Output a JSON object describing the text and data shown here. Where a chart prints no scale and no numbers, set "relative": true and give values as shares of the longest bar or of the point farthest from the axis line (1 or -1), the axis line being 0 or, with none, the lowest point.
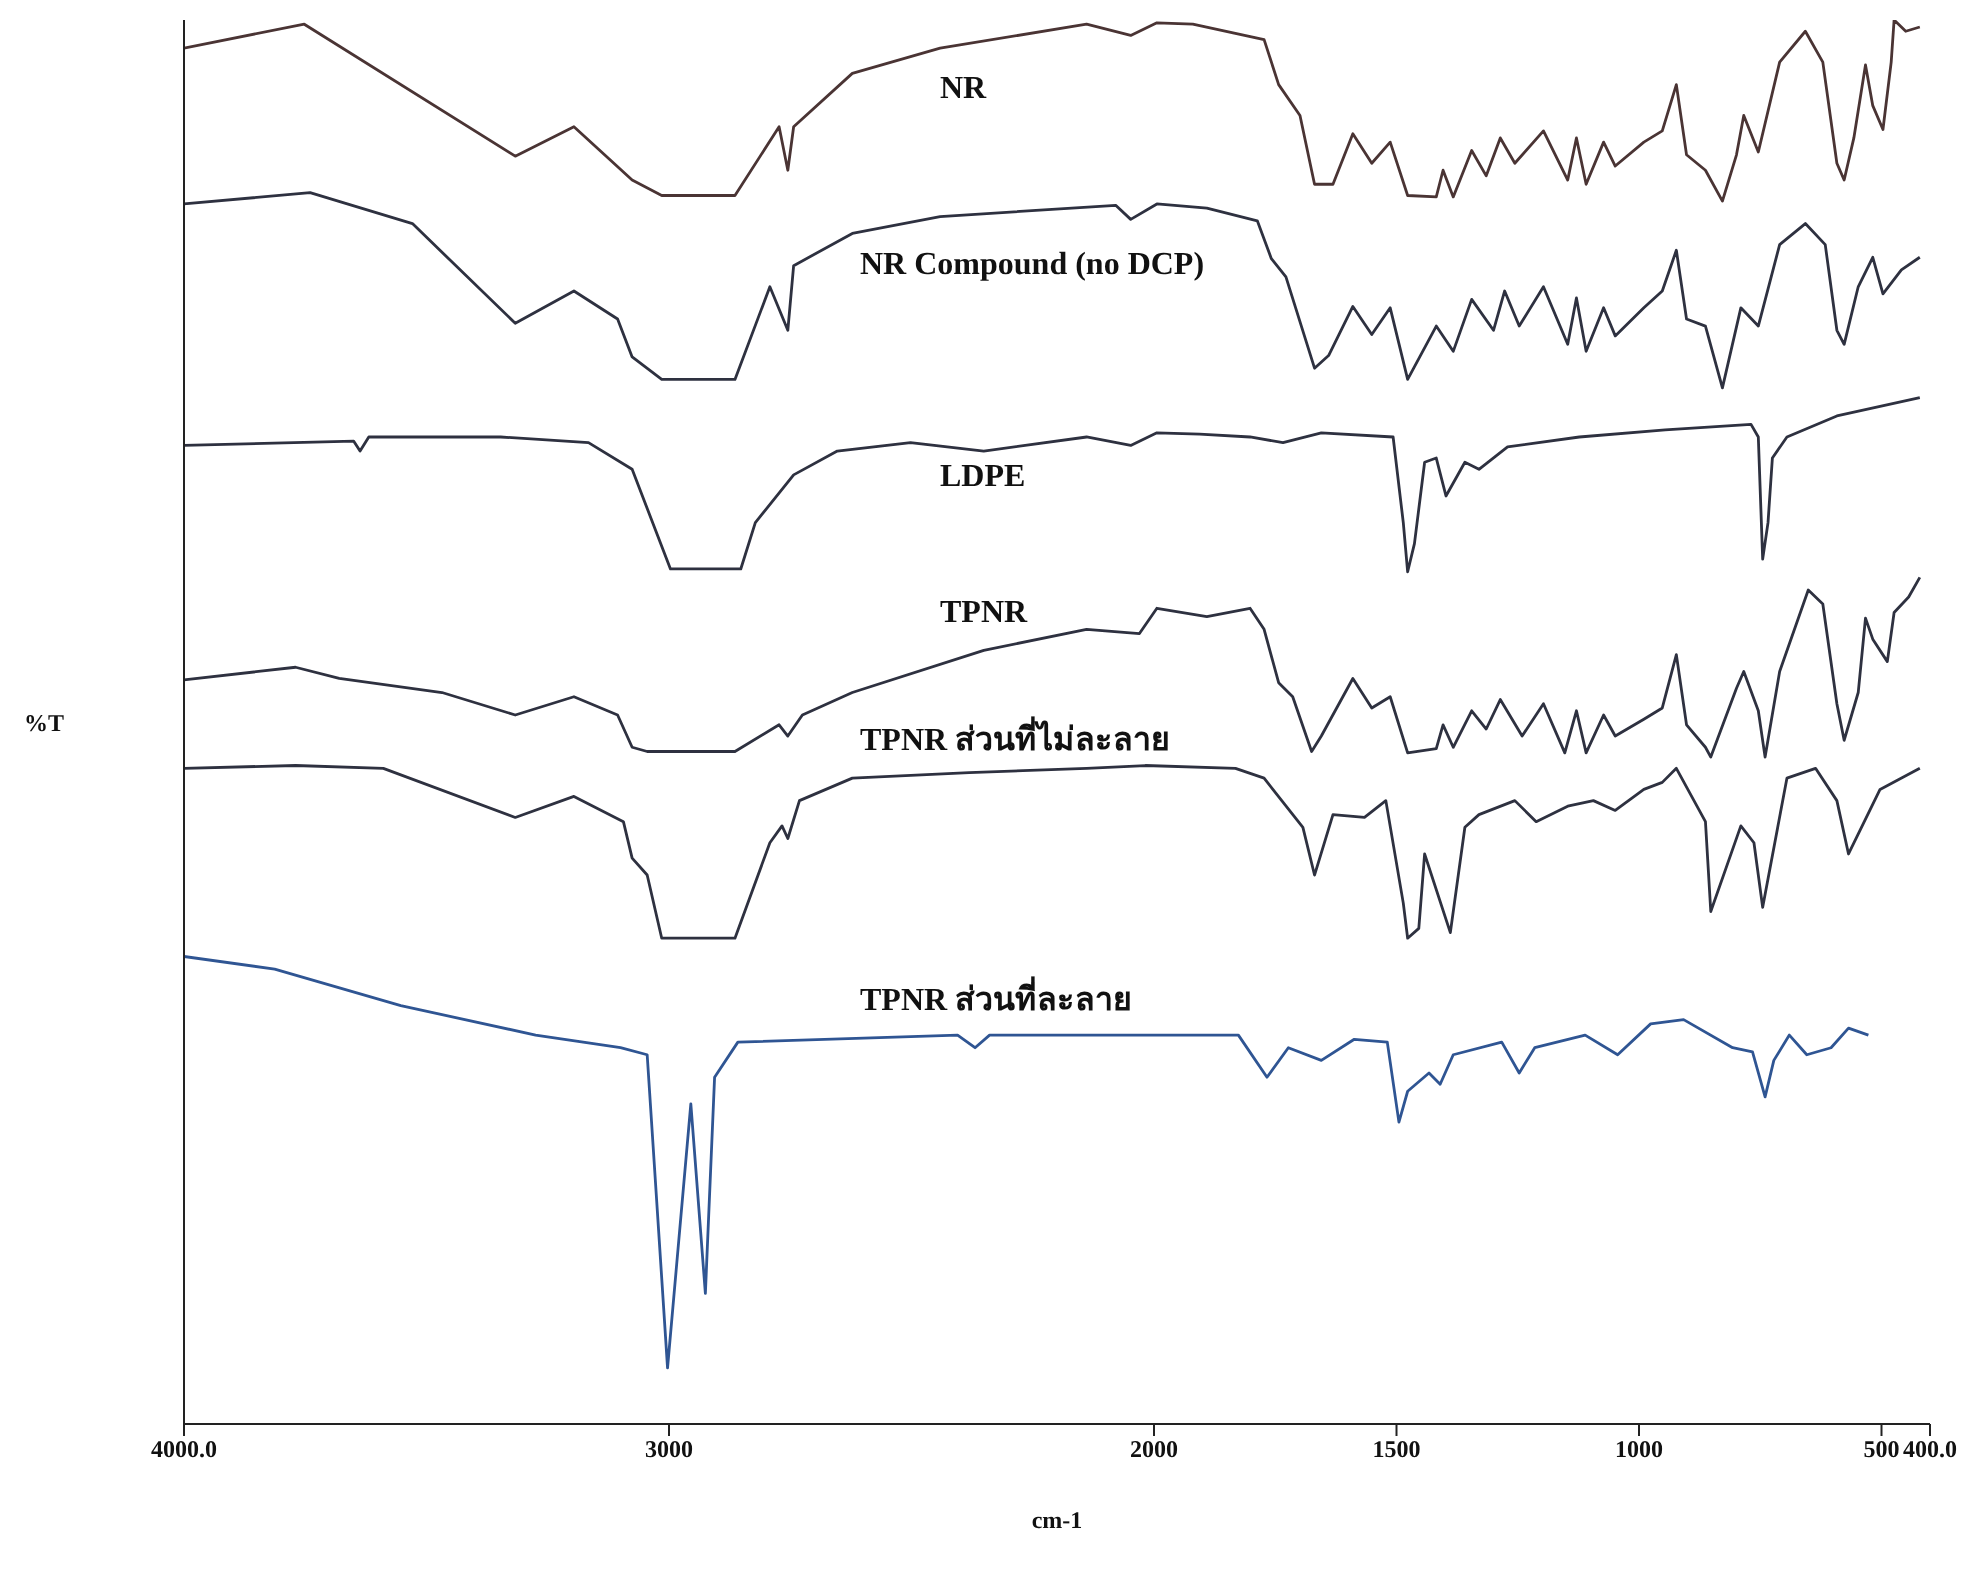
{
  "chart_data": {
    "type": "line",
    "relative": true,
    "xlabel": "cm-1",
    "ylabel": "%T",
    "xlim": [
      4000,
      400
    ],
    "xticks": [
      {
        "value": 4000,
        "label": "4000.0"
      },
      3000,
      2000,
      1500,
      1000,
      500,
      {
        "value": 400,
        "label": "400.0"
      }
    ],
    "series": [
      {
        "name": "NR",
        "color": "#4a3434",
        "x": [
          4000,
          3752,
          3317,
          3196,
          3076,
          3015,
          2864,
          2773,
          2755,
          2743,
          2622,
          2441,
          2139,
          2048,
          1994,
          1920,
          1773,
          1743,
          1699,
          1669,
          1631,
          1590,
          1551,
          1513,
          1477,
          1418,
          1404,
          1383,
          1345,
          1315,
          1286,
          1256,
          1197,
          1147,
          1129,
          1109,
          1073,
          1049,
          990,
          952,
          923,
          902,
          863,
          828,
          799,
          784,
          754,
          710,
          657,
          621,
          592,
          577,
          557,
          533,
          518,
          497,
          480,
          474,
          450,
          421
        ],
        "values": [
          0.98,
          0.997,
          0.903,
          0.924,
          0.886,
          0.875,
          0.875,
          0.924,
          0.893,
          0.924,
          0.962,
          0.98,
          0.997,
          0.989,
          0.998,
          0.997,
          0.986,
          0.954,
          0.932,
          0.883,
          0.883,
          0.919,
          0.898,
          0.913,
          0.875,
          0.874,
          0.893,
          0.874,
          0.907,
          0.889,
          0.916,
          0.898,
          0.921,
          0.886,
          0.916,
          0.883,
          0.913,
          0.896,
          0.913,
          0.921,
          0.954,
          0.904,
          0.893,
          0.871,
          0.904,
          0.932,
          0.906,
          0.97,
          0.992,
          0.97,
          0.898,
          0.886,
          0.916,
          0.968,
          0.939,
          0.922,
          0.97,
          1.0,
          0.992,
          0.995
        ]
      },
      {
        "name": "NR Compound (no DCP)",
        "color": "#2e3140",
        "x": [
          4000,
          3740,
          3529,
          3317,
          3196,
          3106,
          3076,
          3015,
          2864,
          2792,
          2755,
          2743,
          2622,
          2441,
          2079,
          2048,
          1994,
          1891,
          1787,
          1758,
          1728,
          1669,
          1640,
          1590,
          1551,
          1513,
          1477,
          1418,
          1383,
          1345,
          1300,
          1277,
          1247,
          1197,
          1147,
          1129,
          1109,
          1073,
          1049,
          990,
          952,
          923,
          902,
          863,
          828,
          790,
          754,
          710,
          657,
          616,
          592,
          577,
          548,
          518,
          497,
          459,
          421
        ],
        "values": [
          0.869,
          0.877,
          0.855,
          0.784,
          0.807,
          0.787,
          0.76,
          0.744,
          0.744,
          0.81,
          0.779,
          0.825,
          0.848,
          0.86,
          0.868,
          0.858,
          0.869,
          0.866,
          0.857,
          0.83,
          0.817,
          0.752,
          0.761,
          0.796,
          0.776,
          0.795,
          0.744,
          0.782,
          0.764,
          0.801,
          0.779,
          0.807,
          0.782,
          0.81,
          0.769,
          0.802,
          0.764,
          0.795,
          0.775,
          0.795,
          0.807,
          0.836,
          0.787,
          0.782,
          0.738,
          0.795,
          0.782,
          0.84,
          0.855,
          0.84,
          0.779,
          0.769,
          0.81,
          0.831,
          0.805,
          0.822,
          0.831
        ]
      },
      {
        "name": "LDPE",
        "color": "#2e3140",
        "x": [
          4000,
          3650,
          3637,
          3619,
          3347,
          3166,
          3076,
          2997,
          2852,
          2822,
          2743,
          2653,
          2502,
          2351,
          2139,
          2048,
          1994,
          1906,
          1802,
          1734,
          1655,
          1507,
          1486,
          1477,
          1463,
          1442,
          1418,
          1398,
          1359,
          1330,
          1271,
          1123,
          946,
          769,
          754,
          745,
          734,
          725,
          695,
          592,
          421
        ],
        "values": [
          0.697,
          0.7,
          0.693,
          0.703,
          0.703,
          0.699,
          0.68,
          0.609,
          0.609,
          0.642,
          0.676,
          0.693,
          0.699,
          0.693,
          0.703,
          0.697,
          0.706,
          0.705,
          0.703,
          0.699,
          0.706,
          0.703,
          0.642,
          0.607,
          0.627,
          0.685,
          0.688,
          0.661,
          0.685,
          0.68,
          0.696,
          0.703,
          0.708,
          0.712,
          0.703,
          0.616,
          0.642,
          0.688,
          0.703,
          0.718,
          0.731
        ]
      },
      {
        "name": "TPNR",
        "color": "#2e3140",
        "x": [
          4000,
          3770,
          3680,
          3468,
          3317,
          3196,
          3106,
          3076,
          3045,
          2864,
          2773,
          2755,
          2725,
          2622,
          2351,
          2139,
          2030,
          1994,
          1891,
          1802,
          1773,
          1743,
          1714,
          1675,
          1655,
          1590,
          1551,
          1513,
          1477,
          1418,
          1404,
          1383,
          1345,
          1315,
          1286,
          1241,
          1197,
          1153,
          1129,
          1109,
          1073,
          1049,
          990,
          952,
          923,
          902,
          863,
          852,
          799,
          784,
          754,
          740,
          710,
          651,
          621,
          592,
          577,
          548,
          533,
          518,
          488,
          474,
          444,
          421
        ],
        "values": [
          0.53,
          0.539,
          0.531,
          0.521,
          0.505,
          0.518,
          0.505,
          0.482,
          0.479,
          0.479,
          0.498,
          0.49,
          0.505,
          0.521,
          0.551,
          0.566,
          0.563,
          0.581,
          0.575,
          0.581,
          0.566,
          0.528,
          0.518,
          0.479,
          0.49,
          0.531,
          0.51,
          0.518,
          0.478,
          0.481,
          0.498,
          0.482,
          0.508,
          0.495,
          0.516,
          0.49,
          0.513,
          0.478,
          0.508,
          0.478,
          0.505,
          0.49,
          0.502,
          0.51,
          0.548,
          0.498,
          0.482,
          0.475,
          0.524,
          0.536,
          0.508,
          0.475,
          0.536,
          0.594,
          0.584,
          0.513,
          0.487,
          0.521,
          0.574,
          0.559,
          0.543,
          0.578,
          0.589,
          0.603
        ]
      },
      {
        "name": "TPNR ส่วนที่ไม่ละลาย",
        "color": "#2e3140",
        "x": [
          4000,
          3770,
          3589,
          3317,
          3196,
          3094,
          3076,
          3045,
          3015,
          2864,
          2792,
          2767,
          2755,
          2731,
          2622,
          2381,
          2139,
          2018,
          1832,
          1773,
          1693,
          1669,
          1631,
          1566,
          1522,
          1486,
          1477,
          1454,
          1442,
          1389,
          1359,
          1330,
          1256,
          1212,
          1147,
          1094,
          1049,
          990,
          952,
          923,
          863,
          852,
          790,
          763,
          745,
          695,
          636,
          592,
          568,
          503,
          421
        ],
        "values": [
          0.467,
          0.469,
          0.467,
          0.432,
          0.447,
          0.429,
          0.403,
          0.391,
          0.346,
          0.346,
          0.414,
          0.426,
          0.417,
          0.444,
          0.46,
          0.464,
          0.467,
          0.469,
          0.467,
          0.46,
          0.425,
          0.391,
          0.434,
          0.432,
          0.444,
          0.371,
          0.346,
          0.353,
          0.406,
          0.35,
          0.425,
          0.434,
          0.444,
          0.429,
          0.44,
          0.444,
          0.437,
          0.452,
          0.457,
          0.467,
          0.429,
          0.365,
          0.426,
          0.414,
          0.368,
          0.46,
          0.467,
          0.444,
          0.406,
          0.452,
          0.467
        ]
      },
      {
        "name": "TPNR ส่วนที่ละลาย",
        "color": "#2f5593",
        "x": [
          4000,
          3813,
          3553,
          3275,
          3100,
          3045,
          3003,
          2955,
          2925,
          2906,
          2858,
          2405,
          2369,
          2339,
          1826,
          1767,
          1723,
          1655,
          1587,
          1519,
          1495,
          1477,
          1433,
          1410,
          1383,
          1283,
          1247,
          1215,
          1111,
          1044,
          976,
          908,
          807,
          766,
          740,
          722,
          690,
          654,
          604,
          568,
          527
        ],
        "values": [
          0.333,
          0.324,
          0.298,
          0.277,
          0.268,
          0.263,
          0.04,
          0.228,
          0.093,
          0.247,
          0.272,
          0.277,
          0.268,
          0.277,
          0.277,
          0.247,
          0.268,
          0.259,
          0.274,
          0.272,
          0.215,
          0.237,
          0.25,
          0.242,
          0.263,
          0.272,
          0.25,
          0.268,
          0.277,
          0.263,
          0.285,
          0.288,
          0.268,
          0.265,
          0.233,
          0.259,
          0.277,
          0.263,
          0.268,
          0.282,
          0.277
        ]
      }
    ]
  }
}
